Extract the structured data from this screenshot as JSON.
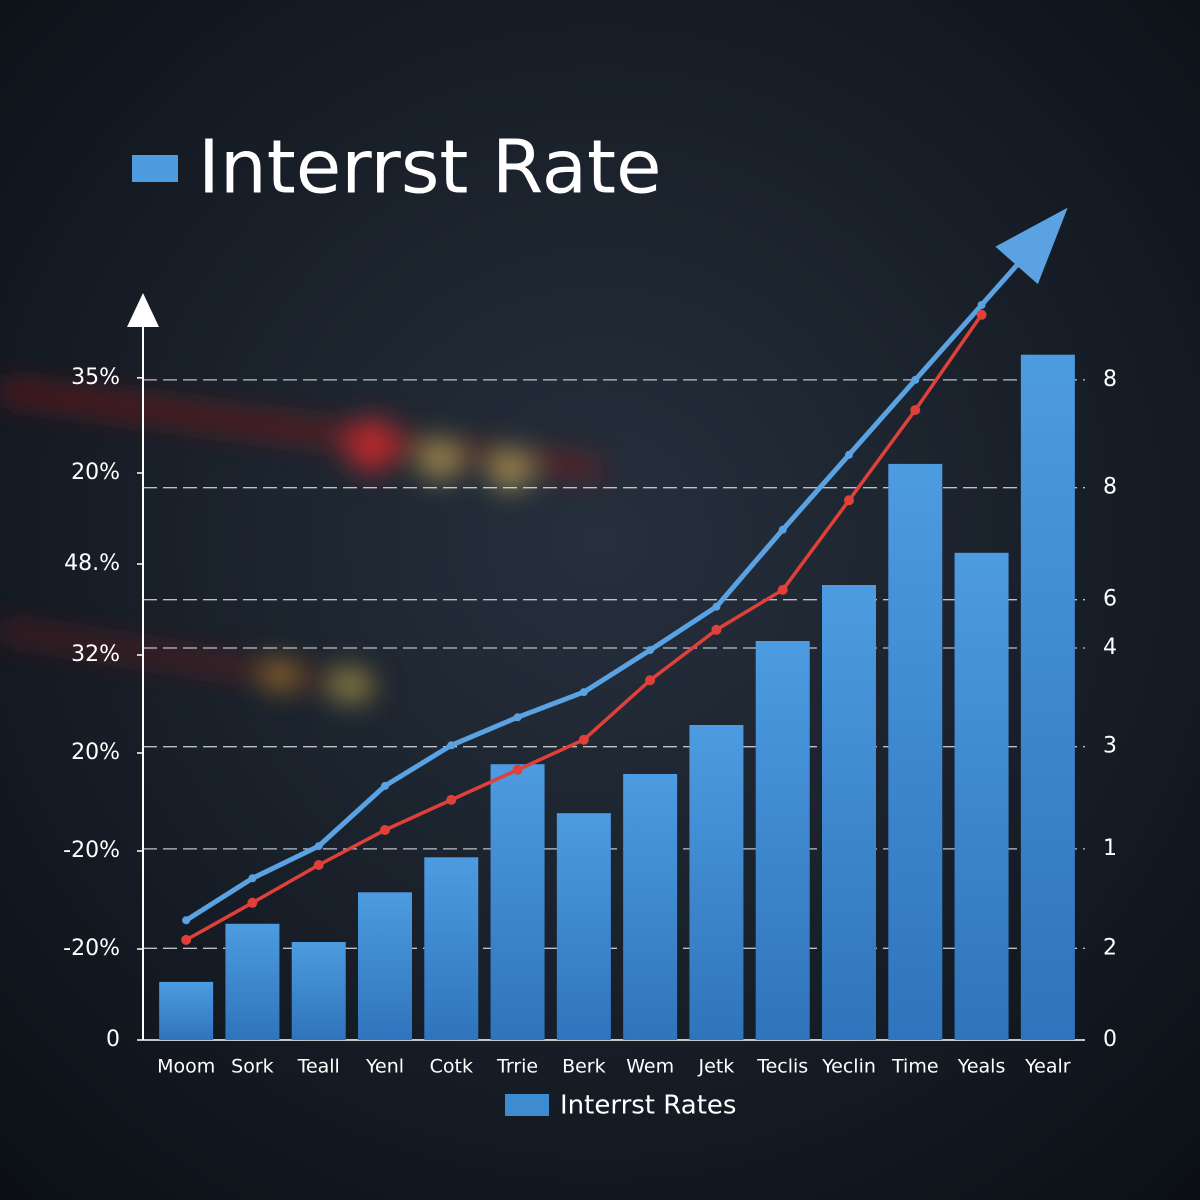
{
  "chart_data": {
    "type": "bar",
    "title": "Interrst Rate",
    "categories": [
      "Moom",
      "Sork",
      "Teall",
      "Yenl",
      "Cotk",
      "Trrie",
      "Berk",
      "Wem",
      "Jetk",
      "Teclis",
      "Yeclin",
      "Time",
      "Yeals",
      "Yealr"
    ],
    "series": [
      {
        "name": "Interrst Rates",
        "color": "#3f8bd0",
        "values": [
          8.3,
          16.6,
          14,
          21.1,
          26.1,
          39.4,
          32.4,
          38,
          45,
          57,
          65,
          82.3,
          69.6,
          97.9
        ]
      }
    ],
    "lines": [
      {
        "color": "#5aa2e2",
        "values": [
          17.1,
          23.1,
          27.7,
          36.3,
          42.1,
          46.1,
          49.7,
          55.7,
          61.9,
          72.9,
          83.6,
          94.3,
          105,
          115.7
        ]
      },
      {
        "color": "#e0403a",
        "values": [
          14.3,
          19.6,
          25,
          30,
          34.3,
          38.6,
          42.9,
          51.4,
          58.6,
          64.3,
          77.1,
          90,
          103.6,
          null
        ]
      }
    ],
    "ylim": [
      0,
      120
    ],
    "yticks": [
      {
        "value": 94.6,
        "label": "35%"
      },
      {
        "value": 81,
        "label": "20%"
      },
      {
        "value": 68,
        "label": "48.%"
      },
      {
        "value": 55,
        "label": "32%"
      },
      {
        "value": 41,
        "label": "20%"
      },
      {
        "value": 27,
        "label": "-20%"
      },
      {
        "value": 13,
        "label": "-20%"
      },
      0
    ],
    "y2lim": [
      0,
      120
    ],
    "y2ticks": [
      {
        "value": 94.3,
        "label": "8"
      },
      {
        "value": 78.9,
        "label": "8"
      },
      {
        "value": 62.9,
        "label": "6"
      },
      {
        "value": 56,
        "label": "4"
      },
      {
        "value": 41.9,
        "label": "3"
      },
      {
        "value": 27.3,
        "label": "1"
      },
      {
        "value": 13.1,
        "label": "2"
      },
      0
    ],
    "grid": true
  }
}
